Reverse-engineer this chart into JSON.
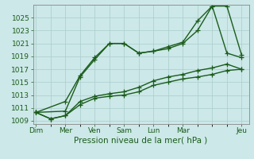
{
  "background_color": "#cce8e8",
  "grid_color": "#aacccc",
  "line_color": "#1a5c1a",
  "ylim": [
    1008.5,
    1027.0
  ],
  "yticks": [
    1009,
    1011,
    1013,
    1015,
    1017,
    1019,
    1021,
    1023,
    1025
  ],
  "xlabel": "Pression niveau de la mer( hPa )",
  "x_major_labels": [
    "Dim",
    "Mer",
    "Ven",
    "Sam",
    "Lun",
    "Mar",
    "Jeu"
  ],
  "x_major_positions": [
    0,
    2,
    4,
    6,
    8,
    10,
    14
  ],
  "xlim": [
    -0.2,
    14.5
  ],
  "series": [
    {
      "x": [
        0,
        1,
        2,
        3,
        4,
        5,
        6,
        7,
        8,
        9,
        10,
        11,
        12,
        13,
        14
      ],
      "y": [
        1010.3,
        1009.3,
        1009.8,
        1011.5,
        1012.5,
        1012.8,
        1013.0,
        1013.5,
        1014.5,
        1015.0,
        1015.5,
        1015.8,
        1016.2,
        1016.8,
        1017.0
      ]
    },
    {
      "x": [
        0,
        1,
        2,
        3,
        4,
        5,
        6,
        7,
        8,
        9,
        10,
        11,
        12,
        13,
        14
      ],
      "y": [
        1010.3,
        1009.3,
        1009.8,
        1012.0,
        1012.8,
        1013.2,
        1013.5,
        1014.2,
        1015.2,
        1015.8,
        1016.2,
        1016.8,
        1017.2,
        1017.8,
        1017.0
      ]
    },
    {
      "x": [
        0,
        2,
        3,
        4,
        5,
        6,
        7,
        8,
        9,
        10,
        11,
        12,
        13,
        14
      ],
      "y": [
        1010.3,
        1010.5,
        1015.8,
        1018.5,
        1021.0,
        1021.0,
        1019.5,
        1019.8,
        1020.2,
        1021.0,
        1023.0,
        1026.8,
        1026.8,
        1019.2
      ]
    },
    {
      "x": [
        0,
        2,
        3,
        4,
        5,
        6,
        7,
        8,
        9,
        10,
        11,
        12,
        13,
        14
      ],
      "y": [
        1010.3,
        1012.0,
        1016.0,
        1018.8,
        1021.0,
        1021.0,
        1019.5,
        1019.8,
        1020.5,
        1021.2,
        1024.5,
        1026.8,
        1019.5,
        1018.8
      ]
    }
  ],
  "marker": "+",
  "markersize": 4,
  "linewidth": 1.0,
  "xlabel_fontsize": 7.5,
  "ytick_fontsize": 6.5,
  "xtick_fontsize": 6.5
}
